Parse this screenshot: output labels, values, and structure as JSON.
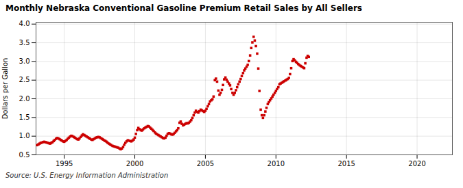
{
  "chart_data": {
    "type": "scatter",
    "title": "Monthly Nebraska Conventional Gasoline Premium Retail Sales by All Sellers",
    "ylabel": "Dollars per Gallon",
    "source": "Source: U.S. Energy Information Administration",
    "color": "#cc0000",
    "marker": "square",
    "grid": true,
    "xlim": [
      1993.0,
      2022.5
    ],
    "ylim": [
      0.5,
      4.05
    ],
    "xticks": [
      1995,
      2000,
      2005,
      2010,
      2015,
      2020
    ],
    "yticks": [
      0.5,
      {
        "value": 1.0,
        "label": "1.0"
      },
      1.5,
      {
        "value": 2.0,
        "label": "2.0"
      },
      2.5,
      {
        "value": 3.0,
        "label": "3.0"
      },
      3.5,
      {
        "value": 4.0,
        "label": "4.0"
      }
    ],
    "x": [
      1993.08,
      1993.17,
      1993.25,
      1993.33,
      1993.42,
      1993.5,
      1993.58,
      1993.67,
      1993.75,
      1993.83,
      1993.92,
      1994.0,
      1994.08,
      1994.17,
      1994.25,
      1994.33,
      1994.42,
      1994.5,
      1994.58,
      1994.67,
      1994.75,
      1994.83,
      1994.92,
      1995.0,
      1995.08,
      1995.17,
      1995.25,
      1995.33,
      1995.42,
      1995.5,
      1995.58,
      1995.67,
      1995.75,
      1995.83,
      1995.92,
      1996.0,
      1996.08,
      1996.17,
      1996.25,
      1996.33,
      1996.42,
      1996.5,
      1996.58,
      1996.67,
      1996.75,
      1996.83,
      1996.92,
      1997.0,
      1997.08,
      1997.17,
      1997.25,
      1997.33,
      1997.42,
      1997.5,
      1997.58,
      1997.67,
      1997.75,
      1997.83,
      1997.92,
      1998.0,
      1998.08,
      1998.17,
      1998.25,
      1998.33,
      1998.42,
      1998.5,
      1998.58,
      1998.67,
      1998.75,
      1998.83,
      1998.92,
      1999.0,
      1999.08,
      1999.17,
      1999.25,
      1999.33,
      1999.42,
      1999.5,
      1999.58,
      1999.67,
      1999.75,
      1999.83,
      1999.92,
      2000.0,
      2000.08,
      2000.17,
      2000.25,
      2000.33,
      2000.42,
      2000.5,
      2000.58,
      2000.67,
      2000.75,
      2000.83,
      2000.92,
      2001.0,
      2001.08,
      2001.17,
      2001.25,
      2001.33,
      2001.42,
      2001.5,
      2001.58,
      2001.67,
      2001.75,
      2001.83,
      2001.92,
      2002.0,
      2002.08,
      2002.17,
      2002.25,
      2002.33,
      2002.42,
      2002.5,
      2002.58,
      2002.67,
      2002.75,
      2002.83,
      2002.92,
      2003.0,
      2003.08,
      2003.17,
      2003.25,
      2003.33,
      2003.42,
      2003.5,
      2003.58,
      2003.67,
      2003.75,
      2003.83,
      2003.92,
      2004.0,
      2004.08,
      2004.17,
      2004.25,
      2004.33,
      2004.42,
      2004.5,
      2004.58,
      2004.67,
      2004.75,
      2004.83,
      2004.92,
      2005.0,
      2005.08,
      2005.17,
      2005.25,
      2005.33,
      2005.42,
      2005.5,
      2005.58,
      2005.67,
      2005.75,
      2005.83,
      2005.92,
      2006.0,
      2006.08,
      2006.17,
      2006.25,
      2006.33,
      2006.42,
      2006.5,
      2006.58,
      2006.67,
      2006.75,
      2006.83,
      2006.92,
      2007.0,
      2007.08,
      2007.17,
      2007.25,
      2007.33,
      2007.42,
      2007.5,
      2007.58,
      2007.67,
      2007.75,
      2007.83,
      2007.92,
      2008.0,
      2008.08,
      2008.17,
      2008.25,
      2008.33,
      2008.42,
      2008.5,
      2008.58,
      2008.67,
      2008.75,
      2008.83,
      2008.92,
      2009.0,
      2009.08,
      2009.17,
      2009.25,
      2009.33,
      2009.42,
      2009.5,
      2009.58,
      2009.67,
      2009.75,
      2009.83,
      2009.92,
      2010.0,
      2010.08,
      2010.17,
      2010.25,
      2010.33,
      2010.42,
      2010.5,
      2010.58,
      2010.67,
      2010.75,
      2010.83,
      2010.92,
      2011.0,
      2011.08,
      2011.17,
      2011.25,
      2011.33,
      2011.42,
      2011.5,
      2011.58,
      2011.67,
      2011.75,
      2011.83,
      2011.92,
      2012.0,
      2012.08,
      2012.17,
      2012.25,
      2012.33
    ],
    "values": [
      0.76,
      0.78,
      0.8,
      0.82,
      0.83,
      0.84,
      0.85,
      0.84,
      0.83,
      0.82,
      0.81,
      0.8,
      0.82,
      0.84,
      0.87,
      0.9,
      0.93,
      0.95,
      0.94,
      0.92,
      0.9,
      0.88,
      0.86,
      0.85,
      0.87,
      0.9,
      0.93,
      0.96,
      0.99,
      1.01,
      1.0,
      0.98,
      0.96,
      0.94,
      0.92,
      0.91,
      0.94,
      0.98,
      1.02,
      1.05,
      1.03,
      1.01,
      0.99,
      0.97,
      0.95,
      0.93,
      0.91,
      0.9,
      0.92,
      0.94,
      0.96,
      0.97,
      0.98,
      0.97,
      0.95,
      0.93,
      0.91,
      0.89,
      0.87,
      0.85,
      0.82,
      0.8,
      0.78,
      0.76,
      0.74,
      0.73,
      0.72,
      0.71,
      0.7,
      0.69,
      0.67,
      0.65,
      0.67,
      0.71,
      0.77,
      0.82,
      0.86,
      0.89,
      0.88,
      0.87,
      0.86,
      0.88,
      0.91,
      0.96,
      1.06,
      1.16,
      1.22,
      1.19,
      1.16,
      1.15,
      1.18,
      1.21,
      1.23,
      1.25,
      1.27,
      1.26,
      1.23,
      1.2,
      1.17,
      1.14,
      1.1,
      1.07,
      1.05,
      1.03,
      1.01,
      0.99,
      0.97,
      0.95,
      0.94,
      0.96,
      1.01,
      1.06,
      1.08,
      1.07,
      1.05,
      1.04,
      1.06,
      1.09,
      1.13,
      1.16,
      1.21,
      1.36,
      1.39,
      1.33,
      1.29,
      1.31,
      1.33,
      1.35,
      1.34,
      1.36,
      1.39,
      1.43,
      1.49,
      1.56,
      1.63,
      1.68,
      1.65,
      1.63,
      1.67,
      1.71,
      1.69,
      1.67,
      1.65,
      1.68,
      1.73,
      1.8,
      1.86,
      1.93,
      1.96,
      1.99,
      2.06,
      2.5,
      2.54,
      2.46,
      2.22,
      2.11,
      2.16,
      2.24,
      2.37,
      2.52,
      2.57,
      2.51,
      2.46,
      2.41,
      2.36,
      2.26,
      2.16,
      2.11,
      2.16,
      2.23,
      2.31,
      2.39,
      2.46,
      2.53,
      2.61,
      2.69,
      2.76,
      2.81,
      2.86,
      2.91,
      3.01,
      3.16,
      3.36,
      3.51,
      3.66,
      3.56,
      3.41,
      3.21,
      2.81,
      2.21,
      1.71,
      1.56,
      1.49,
      1.56,
      1.66,
      1.76,
      1.86,
      1.91,
      1.96,
      2.01,
      2.06,
      2.11,
      2.16,
      2.21,
      2.26,
      2.31,
      2.39,
      2.41,
      2.43,
      2.45,
      2.47,
      2.49,
      2.51,
      2.53,
      2.56,
      2.66,
      2.82,
      3.01,
      3.06,
      3.03,
      2.99,
      2.96,
      2.93,
      2.9,
      2.88,
      2.86,
      2.84,
      2.82,
      2.95,
      3.1,
      3.15,
      3.12
    ]
  }
}
